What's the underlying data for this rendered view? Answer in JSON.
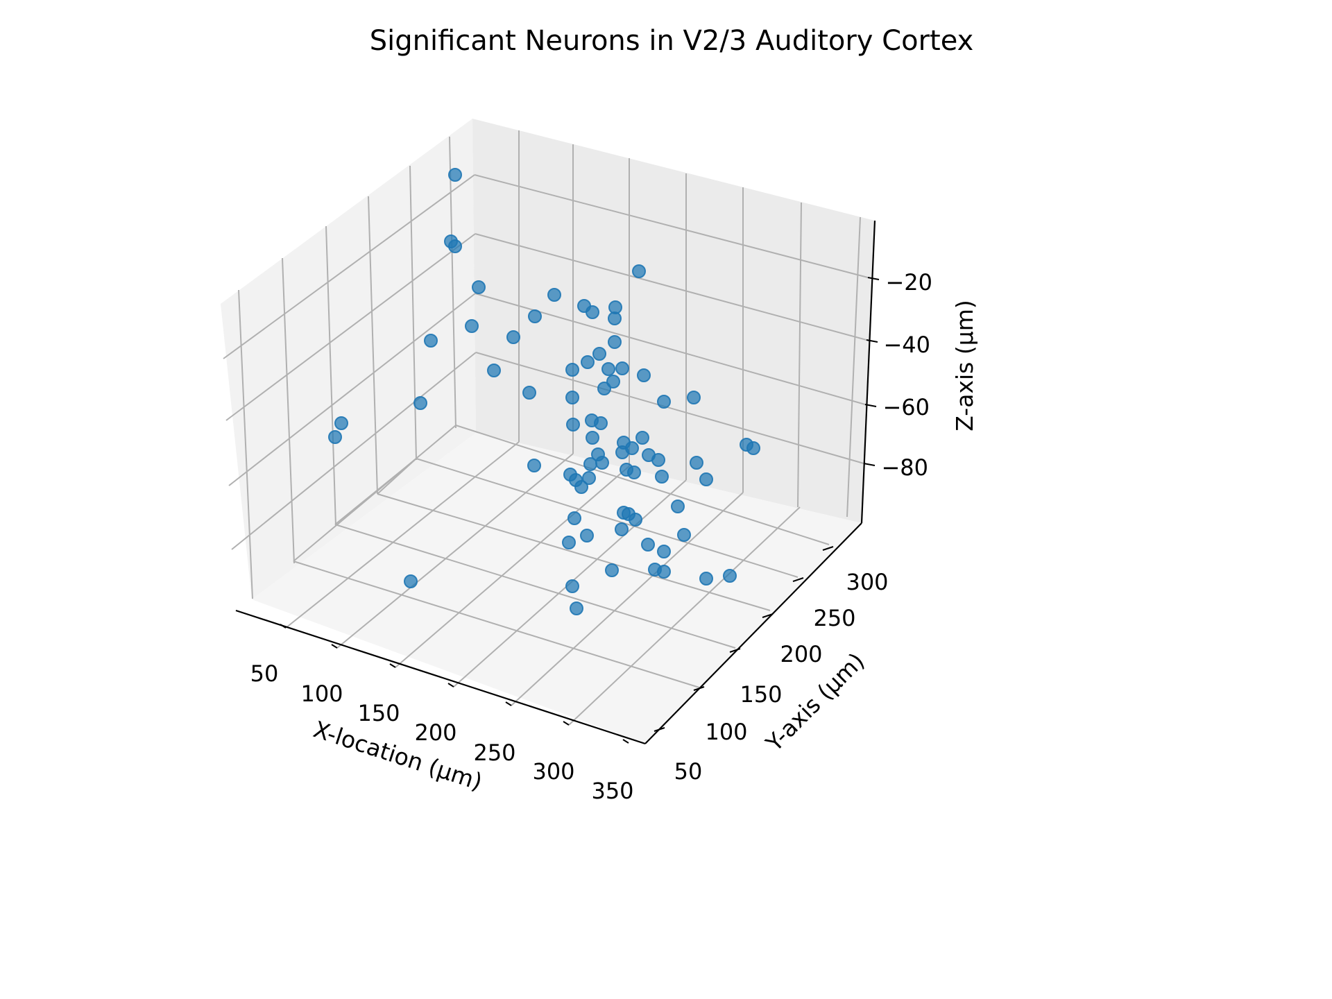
{
  "chart_data": {
    "type": "scatter",
    "projection": "3d",
    "title": "Significant Neurons in V2/3 Auditory Cortex",
    "xlabel": "X-location (µm)",
    "ylabel": "Y-axis (µm)",
    "zlabel": "Z-axis (µm)",
    "x_ticks": [
      "50",
      "100",
      "150",
      "200",
      "250",
      "300",
      "350"
    ],
    "y_ticks": [
      "50",
      "100",
      "150",
      "200",
      "250",
      "300"
    ],
    "z_ticks": [
      "−20",
      "−40",
      "−60",
      "−80"
    ],
    "grid": true,
    "marker_color": "#1f77b4",
    "pane_colors": [
      "#f2f2f2",
      "#ebebeb",
      "#f5f5f5"
    ],
    "points_screen_estimate": [
      [
        656,
        252
      ],
      [
        650,
        348
      ],
      [
        656,
        355
      ],
      [
        690,
        414
      ],
      [
        680,
        470
      ],
      [
        621,
        491
      ],
      [
        740,
        486
      ],
      [
        799,
        425
      ],
      [
        771,
        456
      ],
      [
        842,
        441
      ],
      [
        854,
        450
      ],
      [
        887,
        443
      ],
      [
        886,
        459
      ],
      [
        921,
        391
      ],
      [
        886,
        493
      ],
      [
        864,
        510
      ],
      [
        847,
        522
      ],
      [
        877,
        532
      ],
      [
        897,
        531
      ],
      [
        884,
        550
      ],
      [
        871,
        560
      ],
      [
        928,
        541
      ],
      [
        825,
        533
      ],
      [
        825,
        573
      ],
      [
        763,
        566
      ],
      [
        712,
        534
      ],
      [
        606,
        581
      ],
      [
        492,
        610
      ],
      [
        483,
        630
      ],
      [
        957,
        579
      ],
      [
        1000,
        573
      ],
      [
        853,
        606
      ],
      [
        826,
        612
      ],
      [
        866,
        610
      ],
      [
        854,
        631
      ],
      [
        926,
        631
      ],
      [
        899,
        638
      ],
      [
        911,
        646
      ],
      [
        897,
        652
      ],
      [
        935,
        656
      ],
      [
        949,
        663
      ],
      [
        862,
        655
      ],
      [
        868,
        667
      ],
      [
        851,
        669
      ],
      [
        1004,
        667
      ],
      [
        1076,
        641
      ],
      [
        1086,
        646
      ],
      [
        770,
        671
      ],
      [
        903,
        677
      ],
      [
        914,
        681
      ],
      [
        954,
        687
      ],
      [
        1018,
        691
      ],
      [
        822,
        684
      ],
      [
        830,
        692
      ],
      [
        849,
        689
      ],
      [
        838,
        702
      ],
      [
        977,
        730
      ],
      [
        899,
        739
      ],
      [
        906,
        741
      ],
      [
        916,
        749
      ],
      [
        828,
        747
      ],
      [
        896,
        763
      ],
      [
        986,
        771
      ],
      [
        846,
        772
      ],
      [
        820,
        782
      ],
      [
        934,
        785
      ],
      [
        957,
        795
      ],
      [
        592,
        838
      ],
      [
        882,
        822
      ],
      [
        944,
        821
      ],
      [
        957,
        824
      ],
      [
        1018,
        834
      ],
      [
        1052,
        830
      ],
      [
        825,
        845
      ],
      [
        831,
        877
      ]
    ]
  }
}
